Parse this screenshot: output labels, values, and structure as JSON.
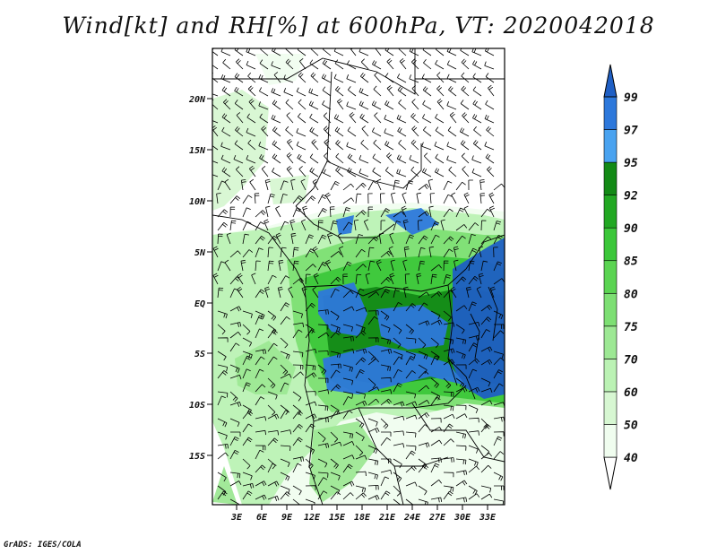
{
  "title": "Wind[kt] and RH[%] at 600hPa, VT: 2020042018",
  "footer": "GrADS: IGES/COLA",
  "map": {
    "lat_labels": [
      "20N",
      "15N",
      "10N",
      "5N",
      "EQ",
      "5S",
      "10S",
      "15S"
    ],
    "lon_labels": [
      "3E",
      "6E",
      "9E",
      "12E",
      "15E",
      "18E",
      "21E",
      "24E",
      "27E",
      "30E",
      "33E"
    ]
  },
  "colorbar": {
    "levels": [
      "40",
      "50",
      "60",
      "70",
      "75",
      "80",
      "85",
      "90",
      "92",
      "95",
      "97",
      "99"
    ],
    "colors": [
      "#f0fdef",
      "#d7f7d2",
      "#bbf2b4",
      "#9de894",
      "#7ddf73",
      "#5bd452",
      "#3cc73a",
      "#22a823",
      "#138a16",
      "#4aa3f0",
      "#2d78db",
      "#1f5fc4"
    ]
  }
}
